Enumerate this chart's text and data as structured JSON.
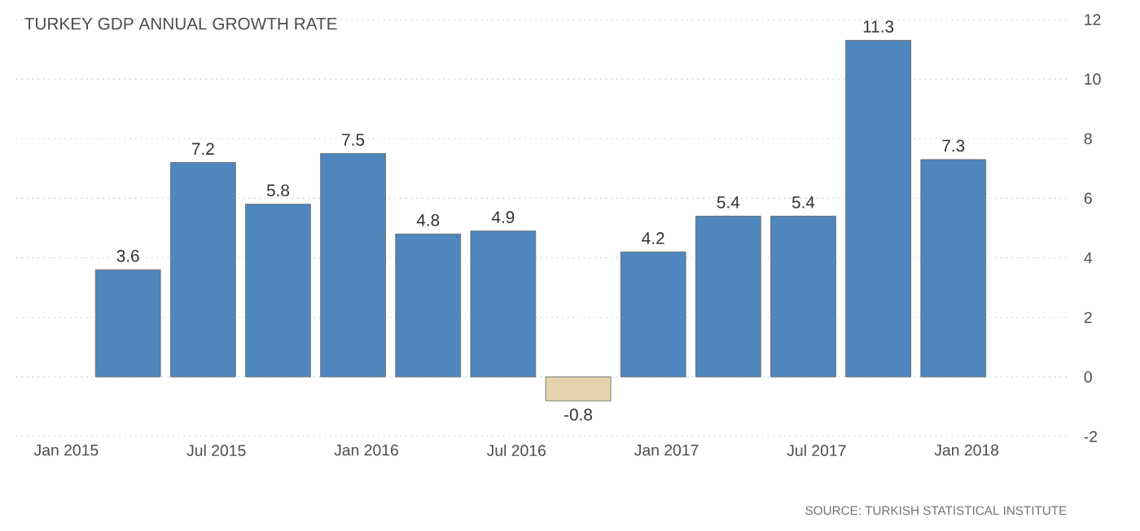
{
  "chart_data": {
    "type": "bar",
    "title": "TURKEY GDP ANNUAL GROWTH RATE",
    "x": [
      "2015-03-15",
      "2015-06-15",
      "2015-09-15",
      "2015-12-15",
      "2016-03-15",
      "2016-06-15",
      "2016-09-15",
      "2016-12-15",
      "2017-03-15",
      "2017-06-15",
      "2017-09-15",
      "2017-12-15"
    ],
    "values": [
      3.6,
      7.2,
      5.8,
      7.5,
      4.8,
      4.9,
      -0.8,
      4.2,
      5.4,
      5.4,
      11.3,
      7.3
    ],
    "colors": [
      "#4f86bd",
      "#4f86bd",
      "#4f86bd",
      "#4f86bd",
      "#4f86bd",
      "#4f86bd",
      "#e5d3ad",
      "#4f86bd",
      "#4f86bd",
      "#4f86bd",
      "#4f86bd",
      "#4f86bd"
    ],
    "data_labels": true,
    "xlim": [
      "2014-11-01",
      "2018-05-01"
    ],
    "xticks": [
      {
        "value": "2015-01-01",
        "label": "Jan 2015"
      },
      {
        "value": "2015-07-01",
        "label": "Jul 2015"
      },
      {
        "value": "2016-01-01",
        "label": "Jan 2016"
      },
      {
        "value": "2016-07-01",
        "label": "Jul 2016"
      },
      {
        "value": "2017-01-01",
        "label": "Jan 2017"
      },
      {
        "value": "2017-07-01",
        "label": "Jul 2017"
      },
      {
        "value": "2018-01-01",
        "label": "Jan 2018"
      }
    ],
    "ylim": [
      -2,
      12
    ],
    "yticks": [
      -2,
      0,
      2,
      4,
      6,
      8,
      10,
      12
    ],
    "grid": "y",
    "annotations": [
      "SOURCE: TURKISH STATISTICAL INSTITUTE"
    ]
  }
}
